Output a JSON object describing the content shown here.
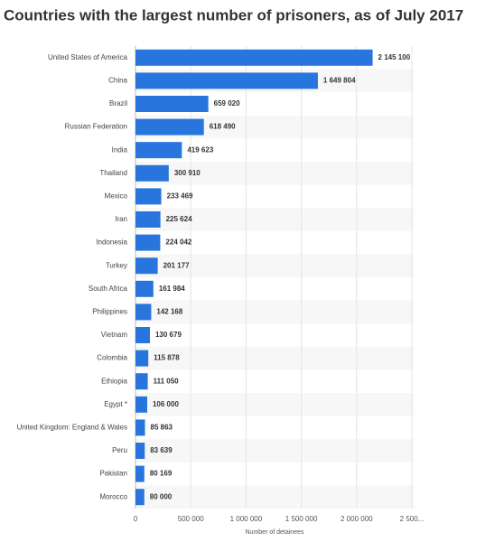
{
  "chart_data": {
    "type": "bar",
    "orientation": "horizontal",
    "title": "Countries with the largest number of prisoners, as of July 2017",
    "x_label": "Number of detainees",
    "categories": [
      "United States of America",
      "China",
      "Brazil",
      "Russian Federation",
      "India",
      "Thailand",
      "Mexico",
      "Iran",
      "Indonesia",
      "Turkey",
      "South Africa",
      "Philippines",
      "Vietnam",
      "Colombia",
      "Ethiopia",
      "Egypt *",
      "United Kingdom: England & Wales",
      "Peru",
      "Pakistan",
      "Morocco"
    ],
    "values": [
      2145100,
      1649804,
      659020,
      618490,
      419623,
      300910,
      233469,
      225624,
      224042,
      201177,
      161984,
      142168,
      130679,
      115878,
      111050,
      106000,
      85863,
      83639,
      80169,
      80000
    ],
    "value_labels": [
      "2 145 100",
      "1 649 804",
      "659 020",
      "618 490",
      "419 623",
      "300 910",
      "233 469",
      "225 624",
      "224 042",
      "201 177",
      "161 984",
      "142 168",
      "130 679",
      "115 878",
      "111 050",
      "106 000",
      "85 863",
      "83 639",
      "80 169",
      "80 000"
    ],
    "color": "#2876dd",
    "xlim": [
      0,
      2500000
    ],
    "xticks": [
      0,
      {
        "value": 500000,
        "label": "500 000"
      },
      {
        "value": 1000000,
        "label": "1 000 000"
      },
      {
        "value": 1500000,
        "label": "1 500 000"
      },
      {
        "value": 2000000,
        "label": "2 000 000"
      },
      {
        "value": 2500000,
        "label": "2 500..."
      }
    ],
    "grid": true
  }
}
